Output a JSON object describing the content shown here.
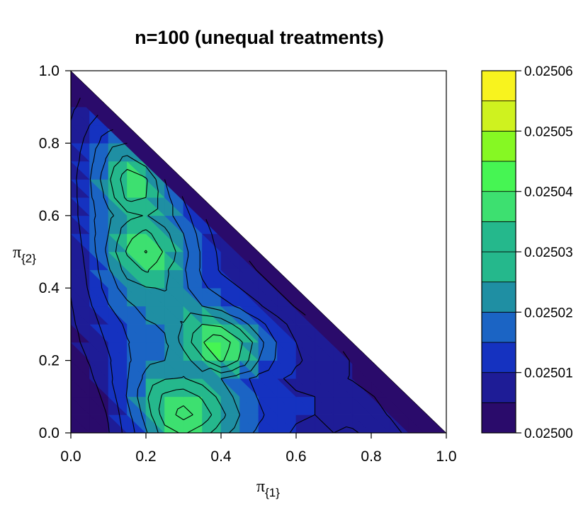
{
  "chart_data": {
    "type": "heatmap",
    "subtype": "filled-contour",
    "title": "n=100 (unequal treatments)",
    "xlabel": {
      "base": "π",
      "sub": "{1}"
    },
    "ylabel": {
      "base": "π",
      "sub": "{2}"
    },
    "xlim": [
      0,
      1
    ],
    "ylim": [
      0,
      1
    ],
    "x_ticks": [
      "0.0",
      "0.2",
      "0.4",
      "0.6",
      "0.8",
      "1.0"
    ],
    "y_ticks": [
      "0.0",
      "0.2",
      "0.4",
      "0.6",
      "0.8",
      "1.0"
    ],
    "domain": "triangle π1 + π2 ≤ 1",
    "levels": [
      0.025,
      0.0250075,
      0.025015,
      0.0250225,
      0.02503,
      0.0250375,
      0.025045,
      0.0250525,
      0.02506
    ],
    "colorbar_ticks": [
      "0.02500",
      "0.02501",
      "0.02502",
      "0.02503",
      "0.02504",
      "0.02505",
      "0.02506"
    ],
    "colors": [
      "#2a0b6b",
      "#1e1c96",
      "#1532c0",
      "#1b64c4",
      "#1f8fa3",
      "#25b88c",
      "#3de070",
      "#46f553",
      "#86f823",
      "#cff21f",
      "#f8f31e"
    ],
    "grid_step": 0.05,
    "grid": [
      [
        0.025001,
        0.025002,
        0.025007,
        0.025018,
        0.025029,
        0.025042,
        0.025046,
        0.025041,
        0.025033,
        0.025026,
        0.025021,
        0.025017,
        0.025014,
        0.025013,
        0.025015,
        0.025016,
        0.025013,
        0.02501,
        0.025006,
        0.025003,
        0.0
      ],
      [
        0.025001,
        0.025003,
        0.025008,
        0.02502,
        0.025033,
        0.025049,
        0.025055,
        0.02505,
        0.02504,
        0.02503,
        0.025024,
        0.025019,
        0.025016,
        0.025015,
        0.025013,
        0.025012,
        0.02501,
        0.025007,
        0.025004,
        0.0
      ],
      [
        0.025002,
        0.025004,
        0.02501,
        0.025023,
        0.025036,
        0.025047,
        0.02505,
        0.025044,
        0.025035,
        0.025027,
        0.025022,
        0.025018,
        0.025016,
        0.025015,
        0.025013,
        0.025011,
        0.025008,
        0.025005,
        0.0
      ],
      [
        0.025003,
        0.025006,
        0.025013,
        0.025022,
        0.025032,
        0.025037,
        0.025038,
        0.025034,
        0.02503,
        0.025025,
        0.02502,
        0.025016,
        0.025013,
        0.025011,
        0.025009,
        0.025007,
        0.025004,
        0.0
      ],
      [
        0.025004,
        0.025008,
        0.025014,
        0.025021,
        0.025028,
        0.02503,
        0.025034,
        0.025043,
        0.025054,
        0.025044,
        0.02503,
        0.025021,
        0.025016,
        0.025013,
        0.02501,
        0.025007,
        0.0
      ],
      [
        0.025005,
        0.02501,
        0.025016,
        0.025022,
        0.025026,
        0.025029,
        0.02504,
        0.025052,
        0.025058,
        0.025047,
        0.025033,
        0.025022,
        0.025015,
        0.025011,
        0.025008,
        0.0
      ],
      [
        0.025006,
        0.025012,
        0.025018,
        0.025024,
        0.025029,
        0.025031,
        0.025038,
        0.025045,
        0.025043,
        0.025034,
        0.025025,
        0.025018,
        0.025012,
        0.025008,
        0.0
      ],
      [
        0.025007,
        0.025014,
        0.025022,
        0.025028,
        0.025033,
        0.025035,
        0.025033,
        0.02503,
        0.025026,
        0.025021,
        0.025016,
        0.025011,
        0.025007,
        0.0
      ],
      [
        0.025008,
        0.025016,
        0.025026,
        0.025034,
        0.025037,
        0.025038,
        0.025032,
        0.025024,
        0.025019,
        0.025015,
        0.025011,
        0.025007,
        0.0
      ],
      [
        0.025009,
        0.025017,
        0.025029,
        0.025041,
        0.025046,
        0.025039,
        0.025031,
        0.025021,
        0.025014,
        0.025011,
        0.025007,
        0.0
      ],
      [
        0.02501,
        0.025018,
        0.025032,
        0.025046,
        0.025053,
        0.025044,
        0.025033,
        0.025021,
        0.025013,
        0.025008,
        0.0
      ],
      [
        0.025011,
        0.025019,
        0.02503,
        0.025042,
        0.025047,
        0.02504,
        0.02503,
        0.025019,
        0.025011,
        0.0
      ],
      [
        0.025012,
        0.02502,
        0.025028,
        0.025035,
        0.025038,
        0.025033,
        0.025026,
        0.025016,
        0.0
      ],
      [
        0.025012,
        0.025021,
        0.025033,
        0.025047,
        0.025045,
        0.025033,
        0.025022,
        0.0
      ],
      [
        0.025012,
        0.025022,
        0.025036,
        0.02505,
        0.025046,
        0.02503,
        0.0
      ],
      [
        0.025011,
        0.02502,
        0.025032,
        0.025041,
        0.025034,
        0.0
      ],
      [
        0.02501,
        0.025018,
        0.025027,
        0.02503,
        0.0
      ],
      [
        0.025008,
        0.025015,
        0.02502,
        0.0
      ],
      [
        0.025006,
        0.025011,
        0.0
      ],
      [
        0.025004,
        0.0
      ],
      [
        0.0
      ]
    ]
  }
}
